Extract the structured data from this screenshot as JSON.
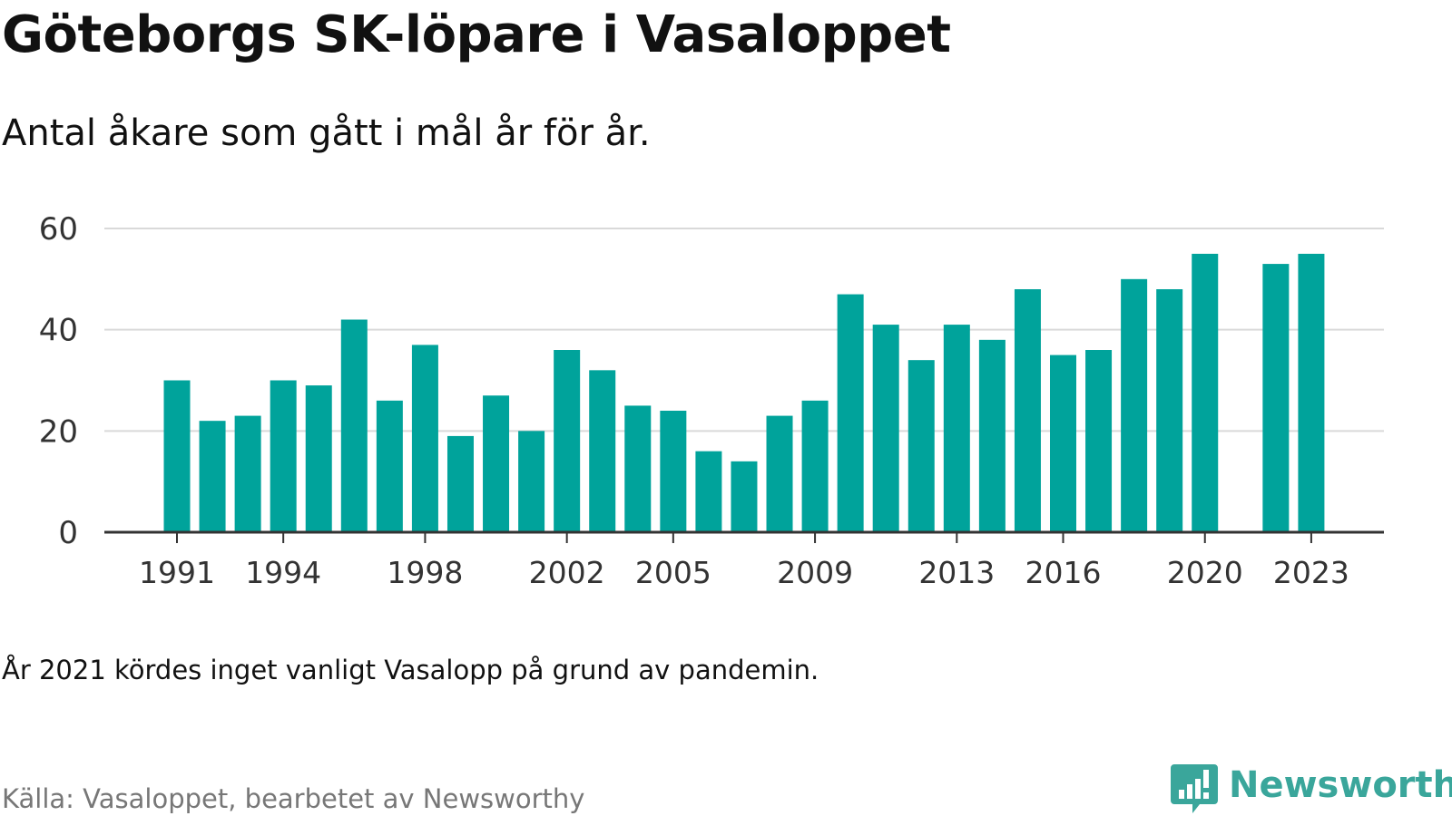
{
  "title": "Göteborgs SK-löpare i Vasaloppet",
  "subtitle": "Antal åkare som gått i mål år för år.",
  "note": "År 2021 kördes inget vanligt Vasalopp på grund av pandemin.",
  "source": "Källa: Vasaloppet, bearbetet av Newsworthy",
  "brand": {
    "name": "Newsworthy",
    "color": "#3aa69b",
    "icon": "bar-chart-speech-bubble-icon"
  },
  "colors": {
    "bar": "#00a39b",
    "grid": "#d9d9d9",
    "axis": "#333333",
    "tick_text": "#333333"
  },
  "chart_data": {
    "type": "bar",
    "title": "Göteborgs SK-löpare i Vasaloppet",
    "xlabel": "",
    "ylabel": "",
    "ylim": [
      0,
      60
    ],
    "yticks": [
      0,
      20,
      40,
      60
    ],
    "xticks": [
      1991,
      1994,
      1998,
      2002,
      2005,
      2009,
      2013,
      2016,
      2020,
      2023
    ],
    "grid": true,
    "legend": "none",
    "categories": [
      1991,
      1992,
      1993,
      1994,
      1995,
      1996,
      1997,
      1998,
      1999,
      2000,
      2001,
      2002,
      2003,
      2004,
      2005,
      2006,
      2007,
      2008,
      2009,
      2010,
      2011,
      2012,
      2013,
      2014,
      2015,
      2016,
      2017,
      2018,
      2019,
      2020,
      2021,
      2022,
      2023
    ],
    "values": [
      30,
      22,
      23,
      30,
      29,
      42,
      26,
      37,
      19,
      27,
      20,
      36,
      32,
      25,
      24,
      16,
      14,
      23,
      26,
      47,
      41,
      34,
      41,
      38,
      48,
      35,
      36,
      50,
      48,
      55,
      null,
      53,
      55
    ]
  }
}
